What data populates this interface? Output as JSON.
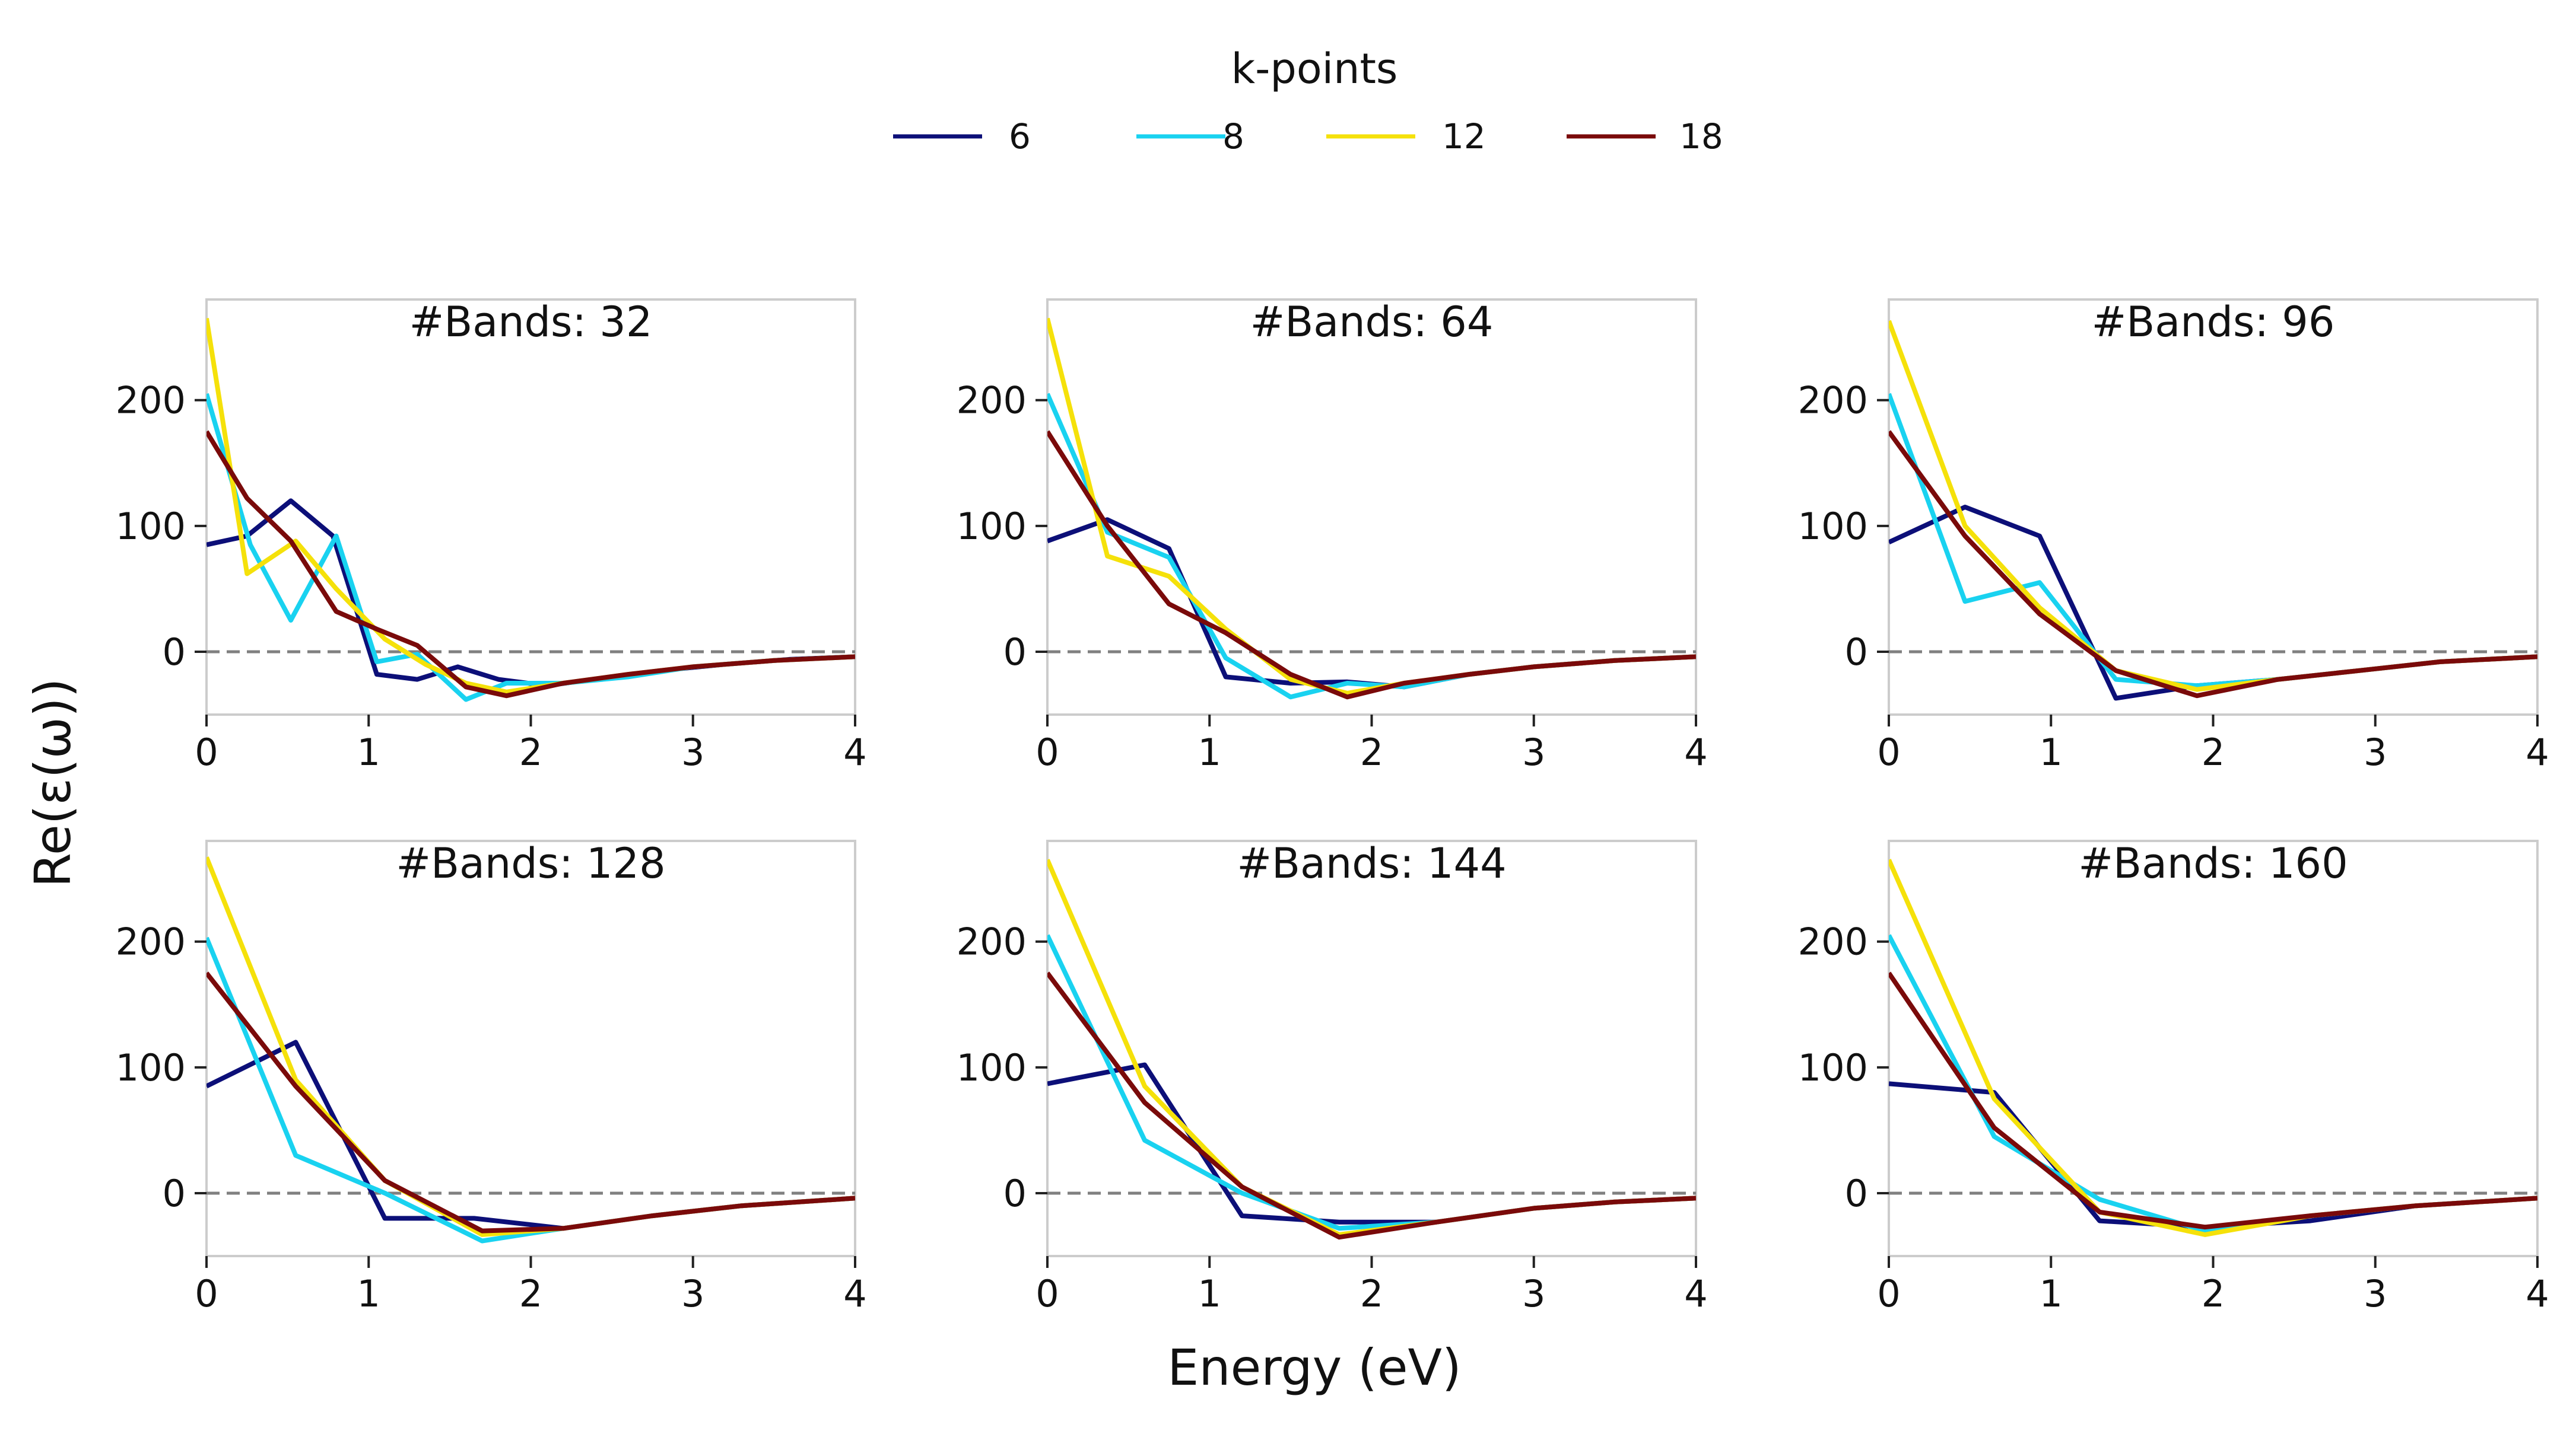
{
  "legend": {
    "title": "k-points",
    "entries": [
      "6",
      "8",
      "12",
      "18"
    ]
  },
  "figure": {
    "xlabel": "Energy (eV)",
    "ylabel": "Re(ε(ω))"
  },
  "colors": {
    "6": "#0c0f78",
    "8": "#19d2f0",
    "12": "#f5e10a",
    "18": "#7a0a0a",
    "zero_line": "#808080",
    "frame": "#cccccc"
  },
  "chart_data": [
    {
      "type": "line",
      "title": "#Bands: 32",
      "xlim": [
        0,
        4
      ],
      "ylim": [
        -50,
        280
      ],
      "xticks": [
        "0",
        "1",
        "2",
        "3",
        "4"
      ],
      "yticks": [
        "0",
        "100",
        "200"
      ],
      "hline": 0,
      "series": [
        {
          "name": "6",
          "x": [
            0,
            0.25,
            0.52,
            0.78,
            1.05,
            1.3,
            1.55,
            1.8,
            2.1,
            2.5,
            2.8,
            3.2,
            3.6,
            4.0
          ],
          "y": [
            85,
            92,
            120,
            92,
            -18,
            -22,
            -12,
            -22,
            -27,
            -20,
            -15,
            -10,
            -6,
            -4
          ]
        },
        {
          "name": "8",
          "x": [
            0,
            0.27,
            0.52,
            0.8,
            1.05,
            1.3,
            1.6,
            1.85,
            2.2,
            2.6,
            3.0,
            3.5,
            4.0
          ],
          "y": [
            205,
            85,
            25,
            92,
            -8,
            -2,
            -38,
            -25,
            -25,
            -20,
            -12,
            -7,
            -4
          ]
        },
        {
          "name": "12",
          "x": [
            0,
            0.25,
            0.55,
            0.8,
            1.1,
            1.35,
            1.6,
            1.85,
            2.2,
            2.6,
            3.0,
            3.5,
            4.0
          ],
          "y": [
            265,
            62,
            88,
            50,
            10,
            -10,
            -25,
            -32,
            -25,
            -18,
            -12,
            -7,
            -4
          ]
        },
        {
          "name": "18",
          "x": [
            0,
            0.25,
            0.52,
            0.8,
            1.05,
            1.3,
            1.6,
            1.85,
            2.2,
            2.6,
            3.0,
            3.5,
            4.0
          ],
          "y": [
            175,
            122,
            88,
            32,
            18,
            5,
            -28,
            -35,
            -25,
            -18,
            -12,
            -7,
            -4
          ]
        }
      ]
    },
    {
      "type": "line",
      "title": "#Bands: 64",
      "xlim": [
        0,
        4
      ],
      "ylim": [
        -50,
        280
      ],
      "xticks": [
        "0",
        "1",
        "2",
        "3",
        "4"
      ],
      "yticks": [
        "0",
        "100",
        "200"
      ],
      "hline": 0,
      "series": [
        {
          "name": "6",
          "x": [
            0,
            0.37,
            0.75,
            1.1,
            1.5,
            1.85,
            2.2,
            2.6,
            3.0,
            3.5,
            4.0
          ],
          "y": [
            88,
            105,
            82,
            -20,
            -25,
            -24,
            -28,
            -18,
            -12,
            -7,
            -4
          ]
        },
        {
          "name": "8",
          "x": [
            0,
            0.37,
            0.75,
            1.1,
            1.5,
            1.85,
            2.2,
            2.6,
            3.0,
            3.5,
            4.0
          ],
          "y": [
            205,
            95,
            75,
            -5,
            -36,
            -25,
            -28,
            -18,
            -12,
            -7,
            -4
          ]
        },
        {
          "name": "12",
          "x": [
            0,
            0.37,
            0.75,
            1.1,
            1.5,
            1.85,
            2.2,
            2.6,
            3.0,
            3.5,
            4.0
          ],
          "y": [
            265,
            76,
            60,
            18,
            -22,
            -33,
            -25,
            -18,
            -12,
            -7,
            -4
          ]
        },
        {
          "name": "18",
          "x": [
            0,
            0.37,
            0.75,
            1.1,
            1.5,
            1.85,
            2.2,
            2.6,
            3.0,
            3.5,
            4.0
          ],
          "y": [
            175,
            100,
            38,
            15,
            -18,
            -36,
            -25,
            -18,
            -12,
            -7,
            -4
          ]
        }
      ]
    },
    {
      "type": "line",
      "title": "#Bands: 96",
      "xlim": [
        0,
        4
      ],
      "ylim": [
        -50,
        280
      ],
      "xticks": [
        "0",
        "1",
        "2",
        "3",
        "4"
      ],
      "yticks": [
        "0",
        "100",
        "200"
      ],
      "hline": 0,
      "series": [
        {
          "name": "6",
          "x": [
            0,
            0.47,
            0.93,
            1.4,
            1.9,
            2.4,
            2.9,
            3.4,
            4.0
          ],
          "y": [
            87,
            115,
            92,
            -37,
            -27,
            -22,
            -15,
            -8,
            -4
          ]
        },
        {
          "name": "8",
          "x": [
            0,
            0.47,
            0.93,
            1.4,
            1.9,
            2.4,
            2.9,
            3.4,
            4.0
          ],
          "y": [
            205,
            40,
            55,
            -22,
            -27,
            -22,
            -15,
            -8,
            -4
          ]
        },
        {
          "name": "12",
          "x": [
            0,
            0.47,
            0.93,
            1.4,
            1.9,
            2.4,
            2.9,
            3.4,
            4.0
          ],
          "y": [
            263,
            100,
            35,
            -15,
            -30,
            -22,
            -15,
            -8,
            -4
          ]
        },
        {
          "name": "18",
          "x": [
            0,
            0.47,
            0.93,
            1.4,
            1.9,
            2.4,
            2.9,
            3.4,
            4.0
          ],
          "y": [
            175,
            92,
            30,
            -15,
            -35,
            -22,
            -15,
            -8,
            -4
          ]
        }
      ]
    },
    {
      "type": "line",
      "title": "#Bands: 128",
      "xlim": [
        0,
        4
      ],
      "ylim": [
        -50,
        280
      ],
      "xticks": [
        "0",
        "1",
        "2",
        "3",
        "4"
      ],
      "yticks": [
        "0",
        "100",
        "200"
      ],
      "hline": 0,
      "series": [
        {
          "name": "6",
          "x": [
            0,
            0.55,
            1.1,
            1.65,
            2.2,
            2.75,
            3.3,
            4.0
          ],
          "y": [
            85,
            120,
            -20,
            -20,
            -28,
            -18,
            -10,
            -4
          ]
        },
        {
          "name": "8",
          "x": [
            0,
            0.55,
            1.1,
            1.7,
            2.2,
            2.75,
            3.3,
            4.0
          ],
          "y": [
            203,
            30,
            0,
            -38,
            -28,
            -18,
            -10,
            -4
          ]
        },
        {
          "name": "12",
          "x": [
            0,
            0.55,
            1.1,
            1.7,
            2.2,
            2.75,
            3.3,
            4.0
          ],
          "y": [
            267,
            90,
            10,
            -33,
            -28,
            -18,
            -10,
            -4
          ]
        },
        {
          "name": "18",
          "x": [
            0,
            0.55,
            1.1,
            1.7,
            2.2,
            2.75,
            3.3,
            4.0
          ],
          "y": [
            175,
            85,
            10,
            -30,
            -28,
            -18,
            -10,
            -4
          ]
        }
      ]
    },
    {
      "type": "line",
      "title": "#Bands: 144",
      "xlim": [
        0,
        4
      ],
      "ylim": [
        -50,
        280
      ],
      "xticks": [
        "0",
        "1",
        "2",
        "3",
        "4"
      ],
      "yticks": [
        "0",
        "100",
        "200"
      ],
      "hline": 0,
      "series": [
        {
          "name": "6",
          "x": [
            0,
            0.6,
            1.2,
            1.8,
            2.4,
            3.0,
            3.5,
            4.0
          ],
          "y": [
            87,
            102,
            -18,
            -23,
            -23,
            -12,
            -7,
            -4
          ]
        },
        {
          "name": "8",
          "x": [
            0,
            0.6,
            1.2,
            1.8,
            2.4,
            3.0,
            3.5,
            4.0
          ],
          "y": [
            205,
            42,
            0,
            -28,
            -23,
            -12,
            -7,
            -4
          ]
        },
        {
          "name": "12",
          "x": [
            0,
            0.6,
            1.2,
            1.8,
            2.4,
            3.0,
            3.5,
            4.0
          ],
          "y": [
            265,
            85,
            5,
            -33,
            -23,
            -12,
            -7,
            -4
          ]
        },
        {
          "name": "18",
          "x": [
            0,
            0.6,
            1.2,
            1.8,
            2.4,
            3.0,
            3.5,
            4.0
          ],
          "y": [
            175,
            72,
            5,
            -35,
            -23,
            -12,
            -7,
            -4
          ]
        }
      ]
    },
    {
      "type": "line",
      "title": "#Bands: 160",
      "xlim": [
        0,
        4
      ],
      "ylim": [
        -50,
        280
      ],
      "xticks": [
        "0",
        "1",
        "2",
        "3",
        "4"
      ],
      "yticks": [
        "0",
        "100",
        "200"
      ],
      "hline": 0,
      "series": [
        {
          "name": "6",
          "x": [
            0,
            0.65,
            1.3,
            1.95,
            2.6,
            3.25,
            4.0
          ],
          "y": [
            87,
            80,
            -22,
            -27,
            -22,
            -10,
            -4
          ]
        },
        {
          "name": "8",
          "x": [
            0,
            0.65,
            1.3,
            1.95,
            2.6,
            3.25,
            4.0
          ],
          "y": [
            205,
            45,
            -5,
            -30,
            -18,
            -10,
            -4
          ]
        },
        {
          "name": "12",
          "x": [
            0,
            0.65,
            1.3,
            1.95,
            2.6,
            3.25,
            4.0
          ],
          "y": [
            265,
            75,
            -15,
            -33,
            -18,
            -10,
            -4
          ]
        },
        {
          "name": "18",
          "x": [
            0,
            0.65,
            1.3,
            1.95,
            2.6,
            3.25,
            4.0
          ],
          "y": [
            175,
            52,
            -15,
            -27,
            -18,
            -10,
            -4
          ]
        }
      ]
    }
  ]
}
